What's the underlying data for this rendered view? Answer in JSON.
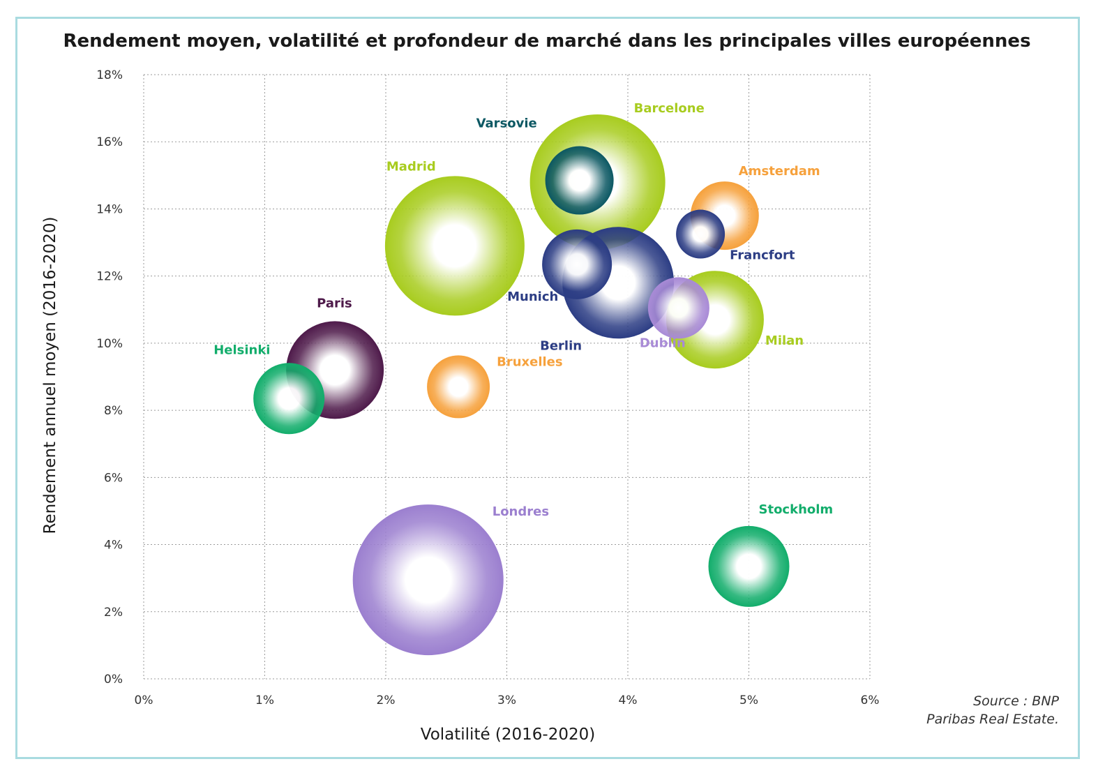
{
  "chart_data": {
    "type": "bubble",
    "title": "Rendement moyen, volatilité et profondeur de marché dans les principales villes européennes",
    "xlabel": "Volatilité (2016-2020)",
    "ylabel": "Rendement annuel moyen (2016-2020)",
    "xlim": [
      0,
      6
    ],
    "ylim": [
      0,
      18
    ],
    "x_ticks": [
      "0%",
      "1%",
      "2%",
      "3%",
      "4%",
      "5%",
      "6%"
    ],
    "y_ticks": [
      "0%",
      "2%",
      "4%",
      "6%",
      "8%",
      "10%",
      "12%",
      "14%",
      "16%",
      "18%"
    ],
    "grid": true,
    "source_lines": [
      "Source : BNP",
      "Paribas Real Estate."
    ],
    "series": [
      {
        "name": "Londres",
        "x": 2.35,
        "y": 2.95,
        "size": 108,
        "color": "#9b7fcf"
      },
      {
        "name": "Madrid",
        "x": 2.57,
        "y": 12.9,
        "size": 100,
        "color": "#a8cc1f"
      },
      {
        "name": "Barcelone",
        "x": 3.75,
        "y": 14.8,
        "size": 97,
        "color": "#a8cc1f"
      },
      {
        "name": "Berlin",
        "x": 3.92,
        "y": 11.8,
        "size": 80,
        "color": "#2c3d84"
      },
      {
        "name": "Paris",
        "x": 1.58,
        "y": 9.2,
        "size": 70,
        "color": "#4e1a4a"
      },
      {
        "name": "Milan",
        "x": 4.72,
        "y": 10.7,
        "size": 70,
        "color": "#a8cc1f"
      },
      {
        "name": "Stockholm",
        "x": 5.0,
        "y": 3.35,
        "size": 58,
        "color": "#12ad6b"
      },
      {
        "name": "Helsinki",
        "x": 1.2,
        "y": 8.35,
        "size": 51,
        "color": "#12ad6b"
      },
      {
        "name": "Munich",
        "x": 3.58,
        "y": 12.35,
        "size": 50,
        "color": "#2c3d84"
      },
      {
        "name": "Amsterdam",
        "x": 4.8,
        "y": 13.8,
        "size": 49,
        "color": "#f6a13c"
      },
      {
        "name": "Varsovie",
        "x": 3.6,
        "y": 14.85,
        "size": 49,
        "color": "#0c5863"
      },
      {
        "name": "Bruxelles",
        "x": 2.6,
        "y": 8.7,
        "size": 45,
        "color": "#f6a13c"
      },
      {
        "name": "Dublin",
        "x": 4.42,
        "y": 11.05,
        "size": 44,
        "color": "#a88ad6"
      },
      {
        "name": "Francfort",
        "x": 4.6,
        "y": 13.25,
        "size": 35,
        "color": "#2c3d84"
      }
    ],
    "labels": [
      {
        "text": "Londres",
        "series": "Londres",
        "color": "#9b7fcf"
      },
      {
        "text": "Madrid",
        "series": "Madrid",
        "color": "#a8cc1f"
      },
      {
        "text": "Barcelone",
        "series": "Barcelone",
        "color": "#a8cc1f"
      },
      {
        "text": "Berlin",
        "series": "Berlin",
        "color": "#2c3d84"
      },
      {
        "text": "Paris",
        "series": "Paris",
        "color": "#4e1a4a"
      },
      {
        "text": "Milan",
        "series": "Milan",
        "color": "#a8cc1f"
      },
      {
        "text": "Stockholm",
        "series": "Stockholm",
        "color": "#12ad6b"
      },
      {
        "text": "Helsinki",
        "series": "Helsinki",
        "color": "#12ad6b"
      },
      {
        "text": "Munich",
        "series": "Munich",
        "color": "#2c3d84"
      },
      {
        "text": "Amsterdam",
        "series": "Amsterdam",
        "color": "#f6a13c"
      },
      {
        "text": "Varsovie",
        "series": "Varsovie",
        "color": "#0c5863"
      },
      {
        "text": "Bruxelles",
        "series": "Bruxelles",
        "color": "#f6a13c"
      },
      {
        "text": "Dublin",
        "series": "Dublin",
        "color": "#a88ad6"
      },
      {
        "text": "Francfort",
        "series": "Francfort",
        "color": "#2c3d84"
      }
    ]
  },
  "colors": {
    "frame": "#a9dbe0",
    "grid": "#9a9a9a",
    "text": "#1a1a1a"
  }
}
